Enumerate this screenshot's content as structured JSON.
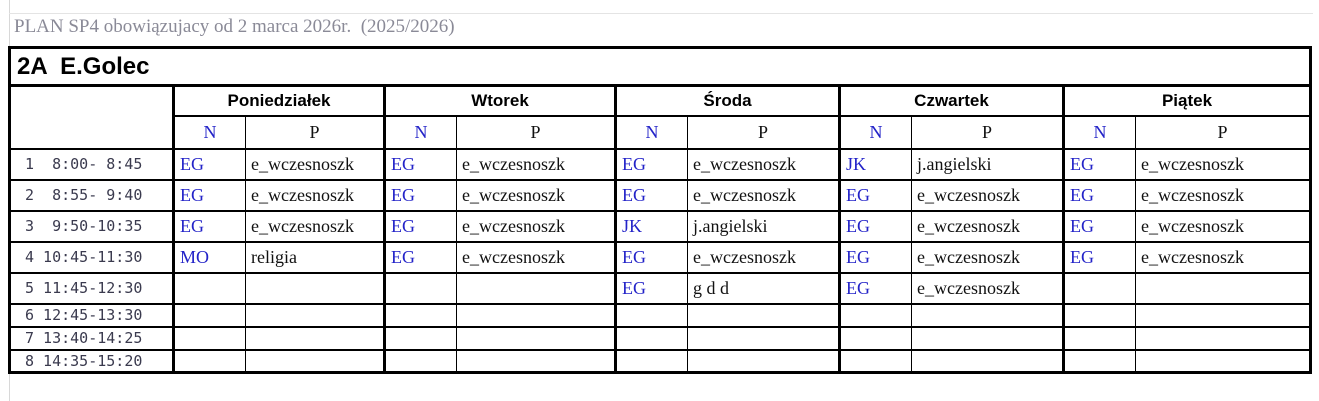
{
  "page": {
    "header_note": "PLAN SP4 obowiązujacy od 2 marca 2026r.  (2025/2026)",
    "class_title": "2A  E.Golec"
  },
  "colors": {
    "teacher_code_text": "#2323c8",
    "subject_text": "#111111",
    "time_text": "#3a3a4e",
    "header_note_text": "#8a8a97",
    "grid_border": "#000000",
    "background": "#ffffff"
  },
  "table": {
    "col_labels": {
      "n": "N",
      "p": "P"
    },
    "days": [
      {
        "label": "Poniedziałek",
        "lessons": [
          {
            "n": "EG",
            "p": "e_wczesnoszk"
          },
          {
            "n": "EG",
            "p": "e_wczesnoszk"
          },
          {
            "n": "EG",
            "p": "e_wczesnoszk"
          },
          {
            "n": "MO",
            "p": "religia"
          },
          {
            "n": "",
            "p": ""
          },
          {
            "n": "",
            "p": ""
          },
          {
            "n": "",
            "p": ""
          },
          {
            "n": "",
            "p": ""
          }
        ]
      },
      {
        "label": "Wtorek",
        "lessons": [
          {
            "n": "EG",
            "p": "e_wczesnoszk"
          },
          {
            "n": "EG",
            "p": "e_wczesnoszk"
          },
          {
            "n": "EG",
            "p": "e_wczesnoszk"
          },
          {
            "n": "EG",
            "p": "e_wczesnoszk"
          },
          {
            "n": "",
            "p": ""
          },
          {
            "n": "",
            "p": ""
          },
          {
            "n": "",
            "p": ""
          },
          {
            "n": "",
            "p": ""
          }
        ]
      },
      {
        "label": "Środa",
        "lessons": [
          {
            "n": "EG",
            "p": "e_wczesnoszk"
          },
          {
            "n": "EG",
            "p": "e_wczesnoszk"
          },
          {
            "n": "JK",
            "p": "j.angielski"
          },
          {
            "n": "EG",
            "p": "e_wczesnoszk"
          },
          {
            "n": "EG",
            "p": "g d d"
          },
          {
            "n": "",
            "p": ""
          },
          {
            "n": "",
            "p": ""
          },
          {
            "n": "",
            "p": ""
          }
        ]
      },
      {
        "label": "Czwartek",
        "lessons": [
          {
            "n": "JK",
            "p": "j.angielski"
          },
          {
            "n": "EG",
            "p": "e_wczesnoszk"
          },
          {
            "n": "EG",
            "p": "e_wczesnoszk"
          },
          {
            "n": "EG",
            "p": "e_wczesnoszk"
          },
          {
            "n": "EG",
            "p": "e_wczesnoszk"
          },
          {
            "n": "",
            "p": ""
          },
          {
            "n": "",
            "p": ""
          },
          {
            "n": "",
            "p": ""
          }
        ]
      },
      {
        "label": "Piątek",
        "lessons": [
          {
            "n": "EG",
            "p": "e_wczesnoszk"
          },
          {
            "n": "EG",
            "p": "e_wczesnoszk"
          },
          {
            "n": "EG",
            "p": "e_wczesnoszk"
          },
          {
            "n": "EG",
            "p": "e_wczesnoszk"
          },
          {
            "n": "",
            "p": ""
          },
          {
            "n": "",
            "p": ""
          },
          {
            "n": "",
            "p": ""
          },
          {
            "n": "",
            "p": ""
          }
        ]
      }
    ],
    "periods": [
      {
        "label": "1  8:00- 8:45"
      },
      {
        "label": "2  8:55- 9:40"
      },
      {
        "label": "3  9:50-10:35"
      },
      {
        "label": "4 10:45-11:30"
      },
      {
        "label": "5 11:45-12:30"
      },
      {
        "label": "6 12:45-13:30"
      },
      {
        "label": "7 13:40-14:25"
      },
      {
        "label": "8 14:35-15:20"
      }
    ]
  }
}
